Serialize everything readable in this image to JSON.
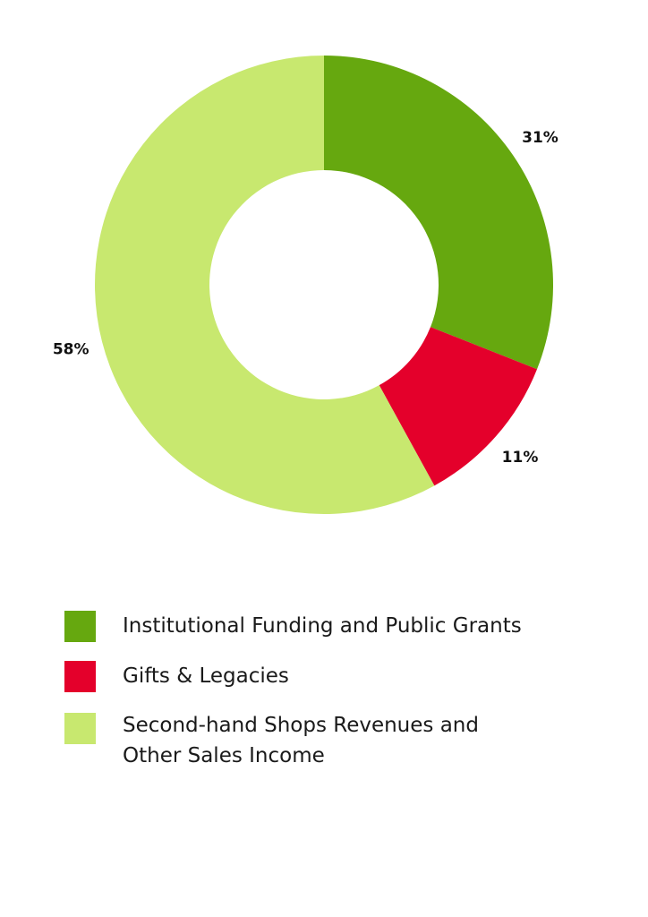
{
  "chart_data": {
    "type": "pie",
    "variant": "donut",
    "slices": [
      {
        "label": "Institutional Funding and Public Grants",
        "value": 31,
        "value_label": "31%",
        "color": "#66a80f"
      },
      {
        "label": "Gifts & Legacies",
        "value": 11,
        "value_label": "11%",
        "color": "#e4002b"
      },
      {
        "label": "Second-hand Shops Revenues and Other Sales Income",
        "value": 58,
        "value_label": "58%",
        "color": "#c8e86f"
      }
    ],
    "start_angle": "12 o'clock",
    "direction": "clockwise",
    "legend_position": "bottom-left"
  },
  "legend": {
    "items": [
      {
        "label": "Institutional Funding and Public Grants",
        "color": "#66a80f"
      },
      {
        "label": "Gifts & Legacies",
        "color": "#e4002b"
      },
      {
        "label": "Second-hand Shops Revenues and Other Sales Income",
        "color": "#c8e86f"
      }
    ]
  }
}
